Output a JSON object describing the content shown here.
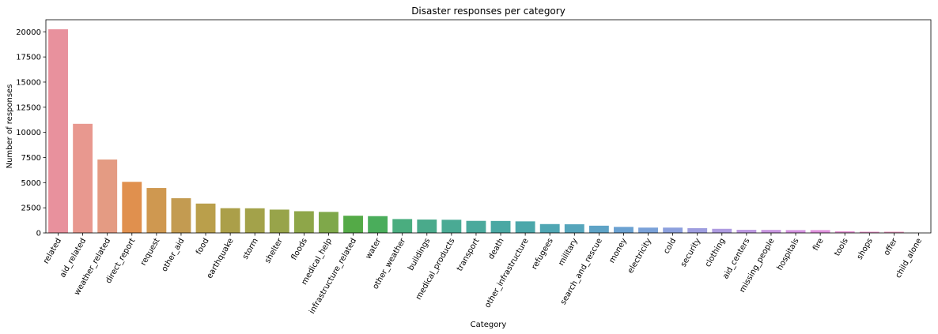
{
  "chart_data": {
    "type": "bar",
    "title": "Disaster responses per category",
    "xlabel": "Category",
    "ylabel": "Number of responses",
    "ylim": [
      0,
      21200
    ],
    "yticks": [
      0,
      2500,
      5000,
      7500,
      10000,
      12500,
      15000,
      17500,
      20000
    ],
    "grid": false,
    "categories": [
      "related",
      "aid_related",
      "weather_related",
      "direct_report",
      "request",
      "other_aid",
      "food",
      "earthquake",
      "storm",
      "shelter",
      "floods",
      "medical_help",
      "infrastructure_related",
      "water",
      "other_weather",
      "buildings",
      "medical_products",
      "transport",
      "death",
      "other_infrastructure",
      "refugees",
      "military",
      "search_and_rescue",
      "money",
      "electricity",
      "cold",
      "security",
      "clothing",
      "aid_centers",
      "missing_people",
      "hospitals",
      "fire",
      "tools",
      "shops",
      "offer",
      "child_alone"
    ],
    "values": [
      20250,
      10850,
      7300,
      5080,
      4470,
      3450,
      2920,
      2460,
      2450,
      2320,
      2160,
      2090,
      1710,
      1670,
      1380,
      1330,
      1310,
      1200,
      1190,
      1150,
      880,
      860,
      720,
      600,
      530,
      530,
      470,
      410,
      310,
      300,
      280,
      280,
      160,
      120,
      120,
      0
    ],
    "colors": [
      "#e8919d",
      "#e8988f",
      "#e49b83",
      "#e0904e",
      "#cf9850",
      "#c39b51",
      "#ba9f4b",
      "#ab9f49",
      "#a3a24a",
      "#98a44a",
      "#8ea649",
      "#7fa84a",
      "#54aa47",
      "#4aad5b",
      "#4aad7f",
      "#4aaa8b",
      "#4aaa94",
      "#4aa99c",
      "#4aa8a3",
      "#4ba7aa",
      "#4fa6b3",
      "#55a5bb",
      "#5ea3c6",
      "#6aa1d1",
      "#7aa1d8",
      "#8ca0dd",
      "#9e9ddf",
      "#ae9be0",
      "#bc98e0",
      "#c896e0",
      "#d493e0",
      "#df91dc",
      "#e390d0",
      "#e691c6",
      "#e792bb",
      "#e892b0"
    ]
  }
}
